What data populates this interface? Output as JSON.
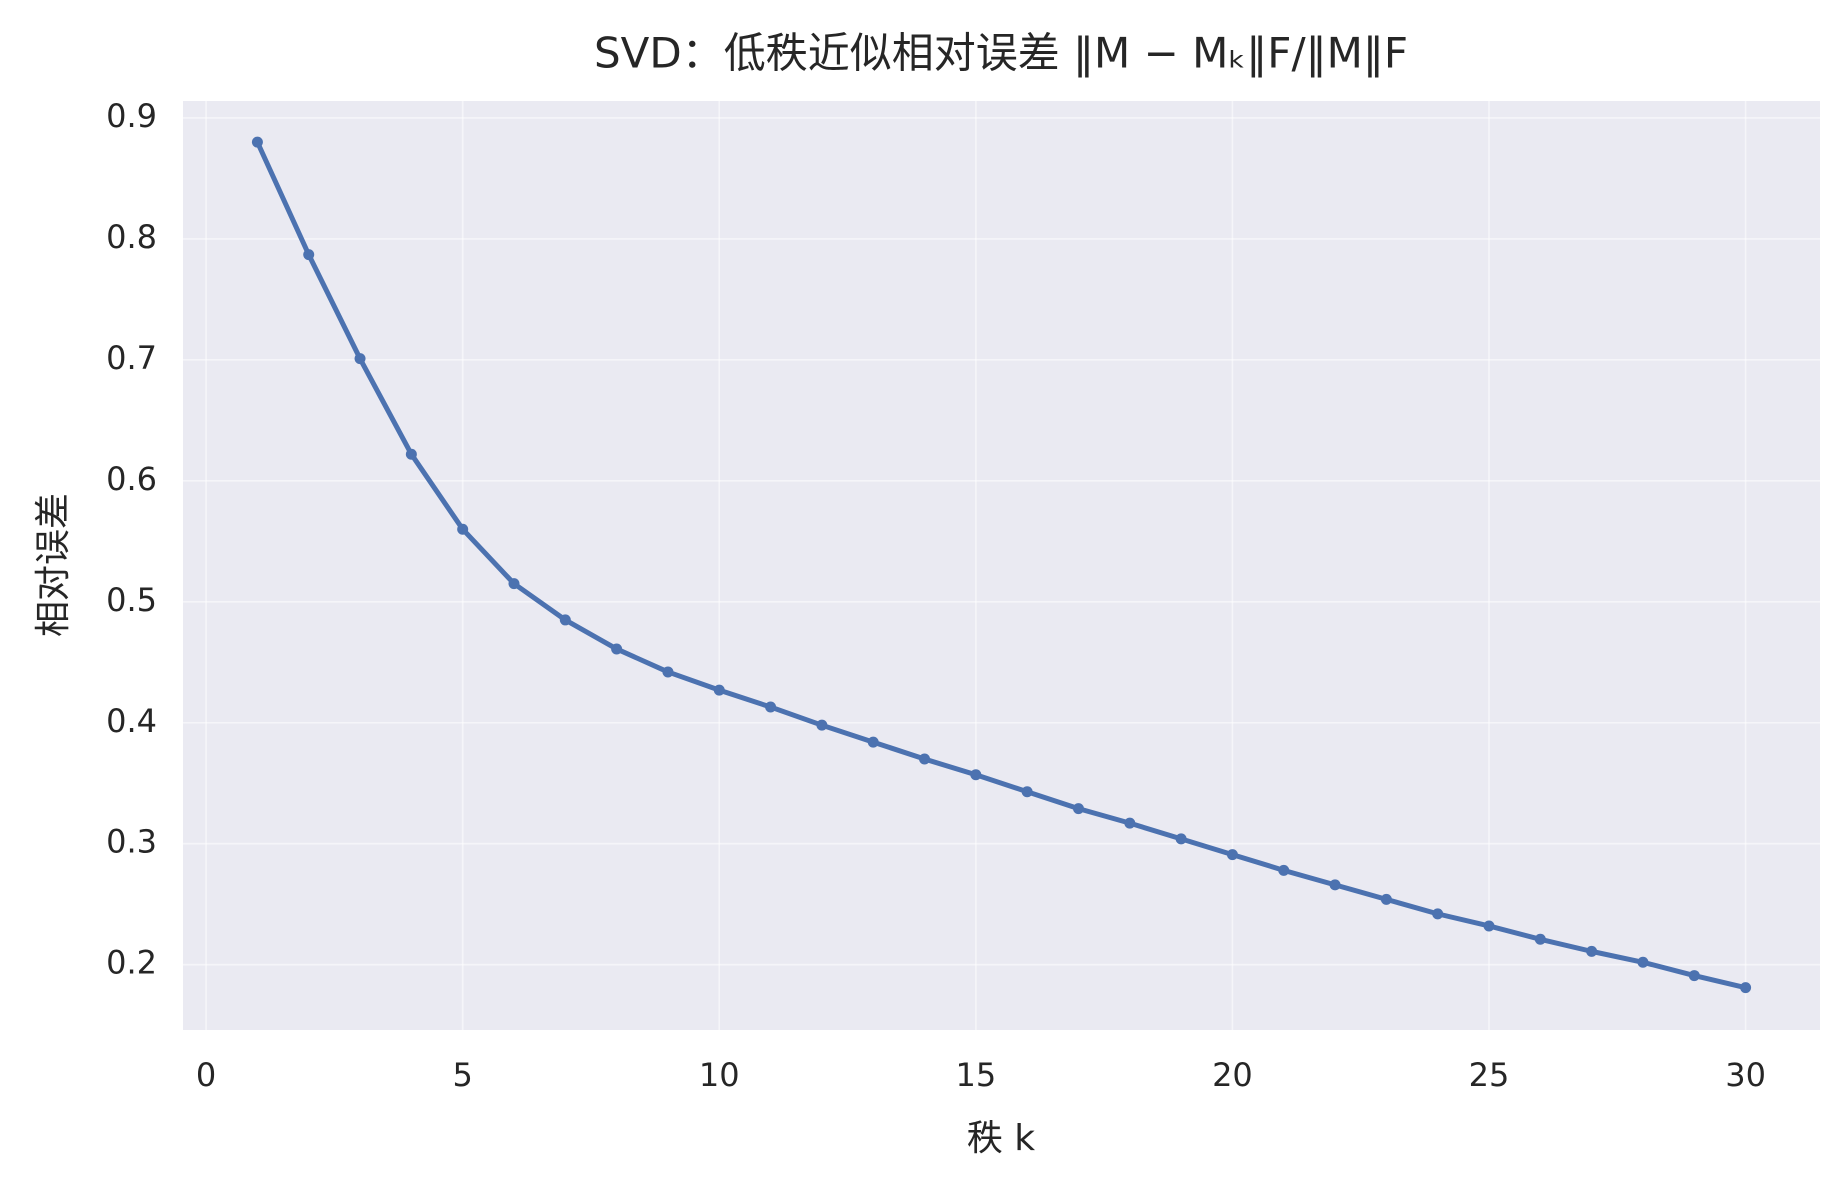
{
  "chart_data": {
    "type": "line",
    "title": "SVD：低秩近似相对误差 ‖M − Mₖ‖F/‖M‖F",
    "x_label": "秩 k",
    "y_label": "相对误差",
    "x": [
      1,
      2,
      3,
      4,
      5,
      6,
      7,
      8,
      9,
      10,
      11,
      12,
      13,
      14,
      15,
      16,
      17,
      18,
      19,
      20,
      21,
      22,
      23,
      24,
      25,
      26,
      27,
      28,
      29,
      30
    ],
    "values": [
      0.88,
      0.787,
      0.701,
      0.622,
      0.56,
      0.515,
      0.485,
      0.461,
      0.442,
      0.427,
      0.413,
      0.398,
      0.384,
      0.37,
      0.357,
      0.343,
      0.329,
      0.317,
      0.304,
      0.291,
      0.278,
      0.266,
      0.254,
      0.242,
      0.232,
      0.221,
      0.211,
      0.202,
      0.191,
      0.181
    ],
    "color": "#4c72b0",
    "xlim": [
      -0.45,
      31.45
    ],
    "xticks": [
      0,
      5,
      10,
      15,
      20,
      25,
      30
    ],
    "ylim": [
      0.146,
      0.914
    ],
    "yticks": [
      0.2,
      0.3,
      0.4,
      0.5,
      0.6,
      0.7,
      0.8,
      0.9
    ],
    "grid": true,
    "markers": true
  }
}
